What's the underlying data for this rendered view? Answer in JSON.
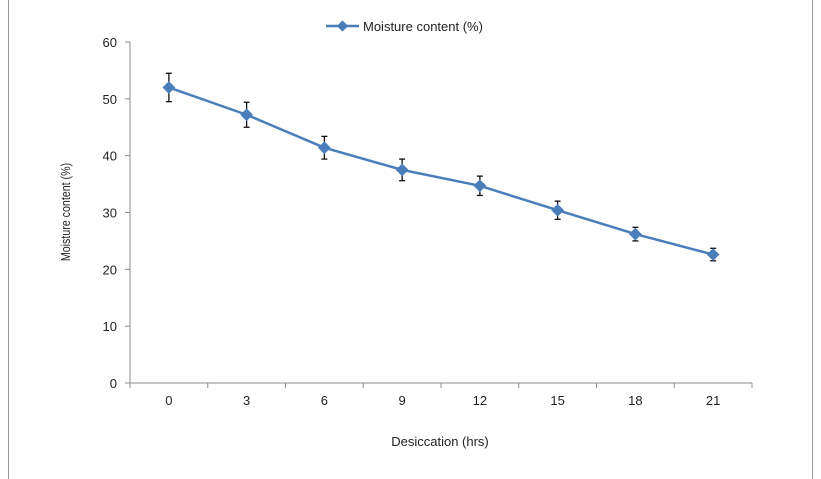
{
  "chart_data": {
    "type": "line",
    "title": "",
    "xlabel": "Desiccation (hrs)",
    "ylabel": "Moisture content (%)",
    "categories": [
      "0",
      "3",
      "6",
      "9",
      "12",
      "15",
      "18",
      "21"
    ],
    "series": [
      {
        "name": "Moisture content (%)",
        "values": [
          52.0,
          47.2,
          41.4,
          37.5,
          34.7,
          30.4,
          26.2,
          22.6
        ],
        "error": [
          2.5,
          2.2,
          2.0,
          1.9,
          1.7,
          1.6,
          1.2,
          1.1
        ],
        "color": "#4a7ebb"
      }
    ],
    "ylim": [
      0,
      60
    ],
    "yticks": [
      0,
      10,
      20,
      30,
      40,
      50,
      60
    ],
    "legend_position": "top-center",
    "grid": false
  }
}
